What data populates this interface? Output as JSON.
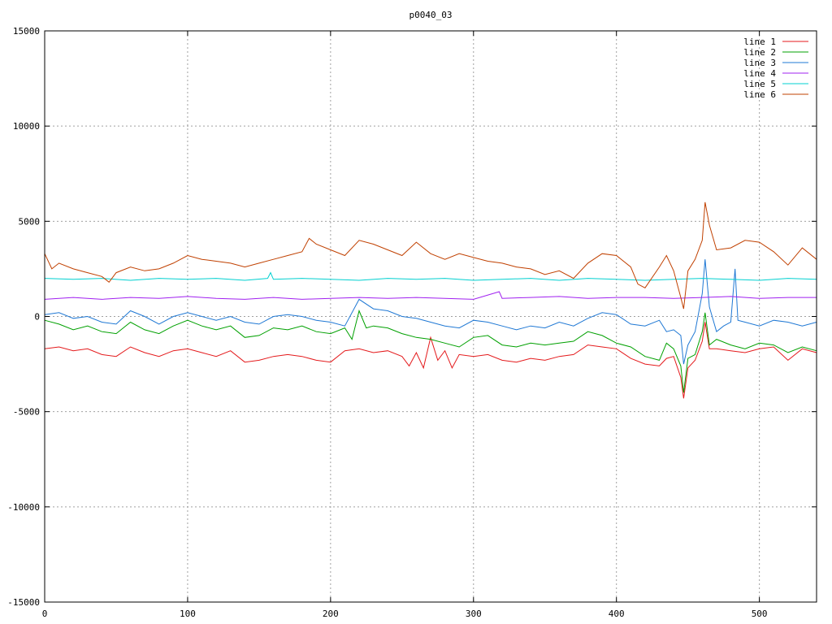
{
  "chart_data": {
    "type": "line",
    "title": "p0040_03",
    "xlabel": "",
    "ylabel": "",
    "xlim": [
      0,
      540
    ],
    "ylim": [
      -15000,
      15000
    ],
    "xticks": [
      0,
      100,
      200,
      300,
      400,
      500
    ],
    "yticks": [
      -15000,
      -10000,
      -5000,
      0,
      5000,
      10000,
      15000
    ],
    "grid": true,
    "legend_position": "top-right",
    "series": [
      {
        "name": "line 1",
        "color": "#e41a1c",
        "x": [
          0,
          10,
          20,
          30,
          40,
          50,
          60,
          70,
          80,
          90,
          100,
          110,
          120,
          130,
          140,
          150,
          160,
          170,
          180,
          190,
          200,
          210,
          220,
          230,
          240,
          250,
          255,
          260,
          265,
          270,
          275,
          280,
          285,
          290,
          300,
          310,
          320,
          330,
          340,
          350,
          360,
          370,
          380,
          390,
          400,
          410,
          420,
          430,
          435,
          440,
          445,
          447,
          450,
          455,
          460,
          462,
          465,
          470,
          480,
          490,
          500,
          510,
          520,
          530,
          540
        ],
        "y": [
          -1700,
          -1600,
          -1800,
          -1700,
          -2000,
          -2100,
          -1600,
          -1900,
          -2100,
          -1800,
          -1700,
          -1900,
          -2100,
          -1800,
          -2400,
          -2300,
          -2100,
          -2000,
          -2100,
          -2300,
          -2400,
          -1800,
          -1700,
          -1900,
          -1800,
          -2100,
          -2600,
          -1900,
          -2700,
          -1100,
          -2300,
          -1800,
          -2700,
          -2000,
          -2100,
          -2000,
          -2300,
          -2400,
          -2200,
          -2300,
          -2100,
          -2000,
          -1500,
          -1600,
          -1700,
          -2200,
          -2500,
          -2600,
          -2200,
          -2100,
          -3200,
          -4300,
          -2700,
          -2300,
          -1300,
          -300,
          -1700,
          -1700,
          -1800,
          -1900,
          -1700,
          -1600,
          -2300,
          -1700,
          -1900
        ]
      },
      {
        "name": "line 2",
        "color": "#00a000",
        "x": [
          0,
          10,
          20,
          30,
          40,
          50,
          60,
          70,
          80,
          90,
          100,
          110,
          120,
          130,
          140,
          150,
          160,
          170,
          180,
          190,
          200,
          210,
          215,
          220,
          225,
          230,
          240,
          250,
          260,
          270,
          280,
          290,
          300,
          310,
          320,
          330,
          340,
          350,
          360,
          370,
          380,
          390,
          400,
          410,
          420,
          430,
          435,
          440,
          445,
          447,
          450,
          455,
          460,
          462,
          465,
          470,
          480,
          490,
          500,
          510,
          520,
          530,
          540
        ],
        "y": [
          -200,
          -400,
          -700,
          -500,
          -800,
          -900,
          -300,
          -700,
          -900,
          -500,
          -200,
          -500,
          -700,
          -500,
          -1100,
          -1000,
          -600,
          -700,
          -500,
          -800,
          -900,
          -600,
          -1200,
          300,
          -600,
          -500,
          -600,
          -900,
          -1100,
          -1200,
          -1400,
          -1600,
          -1100,
          -1000,
          -1500,
          -1600,
          -1400,
          -1500,
          -1400,
          -1300,
          -800,
          -1000,
          -1400,
          -1600,
          -2100,
          -2300,
          -1400,
          -1700,
          -2600,
          -4000,
          -2200,
          -2000,
          -800,
          200,
          -1500,
          -1200,
          -1500,
          -1700,
          -1400,
          -1500,
          -1900,
          -1600,
          -1800
        ]
      },
      {
        "name": "line 3",
        "color": "#1f78d4",
        "x": [
          0,
          10,
          20,
          30,
          40,
          50,
          60,
          70,
          80,
          90,
          100,
          110,
          120,
          130,
          140,
          150,
          160,
          170,
          180,
          190,
          200,
          210,
          220,
          230,
          240,
          250,
          260,
          270,
          280,
          290,
          300,
          310,
          320,
          330,
          340,
          350,
          360,
          370,
          380,
          390,
          400,
          410,
          420,
          430,
          435,
          440,
          445,
          447,
          450,
          455,
          460,
          462,
          465,
          470,
          475,
          480,
          483,
          485,
          490,
          500,
          510,
          520,
          530,
          540
        ],
        "y": [
          100,
          200,
          -100,
          0,
          -300,
          -400,
          300,
          0,
          -400,
          0,
          200,
          0,
          -200,
          0,
          -300,
          -400,
          0,
          100,
          0,
          -200,
          -300,
          -500,
          900,
          400,
          300,
          0,
          -100,
          -300,
          -500,
          -600,
          -200,
          -300,
          -500,
          -700,
          -500,
          -600,
          -300,
          -500,
          -100,
          200,
          100,
          -400,
          -500,
          -200,
          -800,
          -700,
          -1000,
          -2500,
          -1500,
          -800,
          1200,
          3000,
          500,
          -800,
          -500,
          -300,
          2500,
          -200,
          -300,
          -500,
          -200,
          -300,
          -500,
          -300
        ]
      },
      {
        "name": "line 4",
        "color": "#a020f0",
        "x": [
          0,
          20,
          40,
          60,
          80,
          100,
          120,
          140,
          160,
          180,
          200,
          220,
          240,
          260,
          280,
          300,
          318,
          320,
          340,
          360,
          380,
          400,
          420,
          440,
          460,
          480,
          500,
          520,
          540
        ],
        "y": [
          900,
          1000,
          900,
          1000,
          950,
          1050,
          950,
          900,
          1000,
          900,
          950,
          1000,
          950,
          1000,
          950,
          900,
          1300,
          950,
          1000,
          1050,
          950,
          1000,
          1000,
          950,
          1000,
          1050,
          950,
          1000,
          1000
        ]
      },
      {
        "name": "line 5",
        "color": "#00d0d0",
        "x": [
          0,
          20,
          40,
          60,
          80,
          100,
          120,
          140,
          156,
          158,
          160,
          180,
          200,
          220,
          240,
          260,
          280,
          300,
          320,
          340,
          360,
          380,
          400,
          420,
          440,
          460,
          480,
          500,
          520,
          540
        ],
        "y": [
          2000,
          1950,
          2000,
          1900,
          2000,
          1950,
          2000,
          1900,
          2000,
          2300,
          1950,
          2000,
          1950,
          1900,
          2000,
          1950,
          2000,
          1900,
          1950,
          2000,
          1900,
          2000,
          1950,
          1900,
          1950,
          2000,
          1950,
          1900,
          2000,
          1950
        ]
      },
      {
        "name": "line 6",
        "color": "#c04000",
        "x": [
          0,
          5,
          10,
          20,
          30,
          40,
          45,
          50,
          60,
          70,
          80,
          90,
          100,
          110,
          120,
          130,
          140,
          150,
          160,
          170,
          180,
          185,
          190,
          200,
          210,
          220,
          230,
          240,
          250,
          260,
          270,
          280,
          290,
          300,
          310,
          320,
          330,
          340,
          350,
          360,
          370,
          380,
          390,
          400,
          410,
          415,
          420,
          430,
          435,
          440,
          445,
          447,
          450,
          455,
          460,
          462,
          465,
          470,
          480,
          490,
          500,
          510,
          520,
          530,
          540
        ],
        "y": [
          3300,
          2500,
          2800,
          2500,
          2300,
          2100,
          1800,
          2300,
          2600,
          2400,
          2500,
          2800,
          3200,
          3000,
          2900,
          2800,
          2600,
          2800,
          3000,
          3200,
          3400,
          4100,
          3800,
          3500,
          3200,
          4000,
          3800,
          3500,
          3200,
          3900,
          3300,
          3000,
          3300,
          3100,
          2900,
          2800,
          2600,
          2500,
          2200,
          2400,
          2000,
          2800,
          3300,
          3200,
          2600,
          1700,
          1500,
          2600,
          3200,
          2400,
          1000,
          400,
          2400,
          3000,
          4000,
          6000,
          4800,
          3500,
          3600,
          4000,
          3900,
          3400,
          2700,
          3600,
          3000
        ]
      }
    ]
  }
}
